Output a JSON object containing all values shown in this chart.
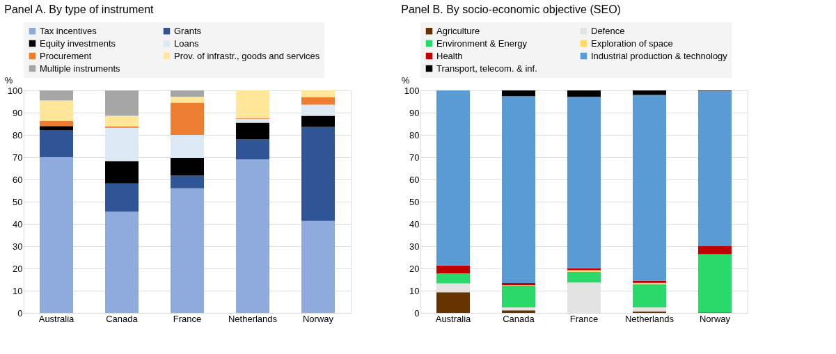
{
  "chart_data": [
    {
      "type": "bar",
      "title": "Panel A. By type of instrument",
      "ylabel": "%",
      "stacked": true,
      "categories": [
        "Australia",
        "Canada",
        "France",
        "Netherlands",
        "Norway"
      ],
      "ylim": [
        0,
        100
      ],
      "yticks": [
        0,
        10,
        20,
        30,
        40,
        50,
        60,
        70,
        80,
        90,
        100
      ],
      "grid": "y",
      "legend": "top",
      "series": [
        {
          "name": "Tax incentives",
          "color": "#8faadc",
          "values": [
            70,
            45.5,
            56,
            69,
            41.3
          ]
        },
        {
          "name": "Grants",
          "color": "#2f5597",
          "values": [
            12,
            12.7,
            5.7,
            9,
            42.3
          ]
        },
        {
          "name": "Equity investments",
          "color": "#000000",
          "values": [
            2,
            10,
            8,
            7.5,
            5
          ]
        },
        {
          "name": "Loans",
          "color": "#dde8f5",
          "values": [
            0,
            15,
            10.3,
            1.8,
            5
          ]
        },
        {
          "name": "Procurement",
          "color": "#ed7d31",
          "values": [
            2.3,
            0.6,
            14.5,
            0.3,
            3.4
          ]
        },
        {
          "name": "Prov. of infrastr., goods and services",
          "color": "#ffe699",
          "values": [
            9.2,
            4.8,
            2.6,
            12.4,
            3
          ]
        },
        {
          "name": "Multiple instruments",
          "color": "#a6a6a6",
          "values": [
            4.5,
            11.4,
            2.9,
            0,
            0
          ]
        }
      ]
    },
    {
      "type": "bar",
      "title": "Panel B. By socio-economic objective (SEO)",
      "ylabel": "%",
      "stacked": true,
      "categories": [
        "Australia",
        "Canada",
        "France",
        "Netherlands",
        "Norway"
      ],
      "ylim": [
        0,
        100
      ],
      "yticks": [
        0,
        10,
        20,
        30,
        40,
        50,
        60,
        70,
        80,
        90,
        100
      ],
      "grid": "y",
      "legend": "top",
      "series": [
        {
          "name": "Agriculture",
          "color": "#663300",
          "values": [
            9.3,
            1.2,
            0,
            0.6,
            0.2
          ]
        },
        {
          "name": "Defence",
          "color": "#e3e3e3",
          "values": [
            4,
            1.3,
            13.7,
            1.9,
            0
          ]
        },
        {
          "name": "Environment & Energy",
          "color": "#2bd86a",
          "values": [
            4.5,
            9.7,
            4.7,
            10.5,
            26.2
          ]
        },
        {
          "name": "Exploration of space",
          "color": "#ffd966",
          "values": [
            0,
            0.2,
            0.8,
            0.5,
            0
          ]
        },
        {
          "name": "Health",
          "color": "#c00000",
          "values": [
            3.5,
            1,
            0.9,
            1,
            3.6
          ]
        },
        {
          "name": "Industrial production & technology",
          "color": "#5b9bd5",
          "values": [
            78.7,
            84,
            77,
            83.5,
            69.8
          ]
        },
        {
          "name": "Transport, telecom. & inf.",
          "color": "#000000",
          "values": [
            0,
            2.6,
            2.9,
            2,
            0.2
          ]
        }
      ]
    }
  ]
}
